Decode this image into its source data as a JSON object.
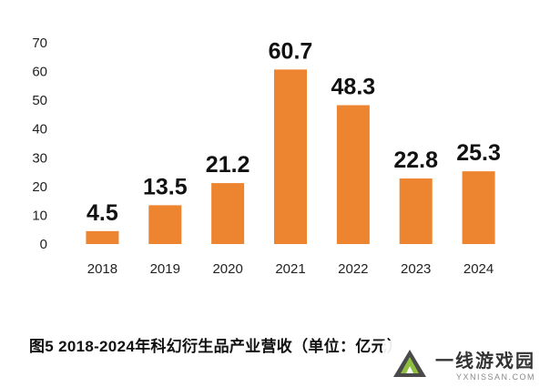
{
  "chart_data": {
    "type": "bar",
    "categories": [
      "2018",
      "2019",
      "2020",
      "2021",
      "2022",
      "2023",
      "2024"
    ],
    "values": [
      4.5,
      13.5,
      21.2,
      60.7,
      48.3,
      22.8,
      25.3
    ],
    "data_labels": [
      "4.5",
      "13.5",
      "21.2",
      "60.7",
      "48.3",
      "22.8",
      "25.3"
    ],
    "ylim": [
      0,
      70
    ],
    "yticks": [
      0,
      10,
      20,
      30,
      40,
      50,
      60,
      70
    ],
    "grid": false,
    "bar_color": "#ED8530",
    "title": "",
    "xlabel": "",
    "ylabel": ""
  },
  "caption": "图5  2018-2024年科幻衍生品产业营收（单位：亿元）",
  "watermark": {
    "name": "一线游戏园",
    "sub": "YXNISSAN.COM"
  }
}
